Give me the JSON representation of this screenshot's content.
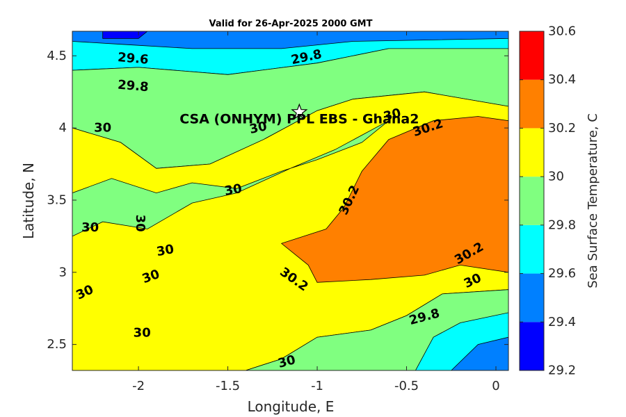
{
  "chart_data": {
    "type": "heatmap",
    "title": "Valid for 26-Apr-2025 2000 GMT",
    "xlabel": "Longitude, E",
    "ylabel": "Latitude, N",
    "xlim": [
      -2.37,
      0.07
    ],
    "ylim": [
      2.32,
      4.67
    ],
    "x_ticks": [
      -2,
      -1.5,
      -1,
      -0.5,
      0
    ],
    "x_tick_labels": [
      "-2",
      "-1.5",
      "-1",
      "-0.5",
      "0"
    ],
    "y_ticks": [
      2.5,
      3,
      3.5,
      4,
      4.5
    ],
    "y_tick_labels": [
      "2.5",
      "3",
      "3.5",
      "4",
      "4.5"
    ],
    "colorbar": {
      "label": "Sea Surface Temperature, C",
      "range": [
        29.2,
        30.6
      ],
      "ticks": [
        "29.2",
        "29.4",
        "29.6",
        "29.8",
        "30",
        "30.2",
        "30.4",
        "30.6"
      ],
      "bands": [
        {
          "from": 29.2,
          "to": 29.4,
          "color": "#0000ff"
        },
        {
          "from": 29.4,
          "to": 29.6,
          "color": "#0080ff"
        },
        {
          "from": 29.6,
          "to": 29.8,
          "color": "#00ffff"
        },
        {
          "from": 29.8,
          "to": 30.0,
          "color": "#80ff80"
        },
        {
          "from": 30.0,
          "to": 30.2,
          "color": "#ffff00"
        },
        {
          "from": 30.2,
          "to": 30.4,
          "color": "#ff8000"
        },
        {
          "from": 30.4,
          "to": 30.6,
          "color": "#ff0000"
        }
      ]
    },
    "regions": [
      {
        "level": "29.6-29.8",
        "color": "#00ffff",
        "points": [
          [
            -2.37,
            4.67
          ],
          [
            0.07,
            4.67
          ],
          [
            0.07,
            4.55
          ],
          [
            -0.6,
            4.55
          ],
          [
            -1.0,
            4.45
          ],
          [
            -1.5,
            4.37
          ],
          [
            -2.0,
            4.42
          ],
          [
            -2.37,
            4.4
          ]
        ]
      },
      {
        "level": "29.4-29.6",
        "color": "#0080ff",
        "points": [
          [
            -2.37,
            4.67
          ],
          [
            0.07,
            4.67
          ],
          [
            0.07,
            4.62
          ],
          [
            -0.8,
            4.6
          ],
          [
            -1.2,
            4.55
          ],
          [
            -1.7,
            4.55
          ],
          [
            -2.1,
            4.58
          ],
          [
            -2.37,
            4.6
          ]
        ]
      },
      {
        "level": "29.2-29.4",
        "color": "#0000ff",
        "points": [
          [
            -2.2,
            4.67
          ],
          [
            -1.95,
            4.67
          ],
          [
            -2.0,
            4.62
          ],
          [
            -2.2,
            4.62
          ]
        ]
      },
      {
        "level": "29.8-30.0",
        "color": "#80ff80",
        "points": [
          [
            -2.37,
            4.4
          ],
          [
            -2.0,
            4.42
          ],
          [
            -1.5,
            4.37
          ],
          [
            -1.0,
            4.45
          ],
          [
            -0.6,
            4.55
          ],
          [
            0.07,
            4.55
          ],
          [
            0.07,
            4.15
          ],
          [
            -0.4,
            4.25
          ],
          [
            -0.8,
            4.2
          ],
          [
            -1.0,
            4.12
          ],
          [
            -1.3,
            3.92
          ],
          [
            -1.6,
            3.75
          ],
          [
            -1.9,
            3.72
          ],
          [
            -2.1,
            3.9
          ],
          [
            -2.37,
            4.0
          ]
        ]
      },
      {
        "level": "30.0-30.2",
        "color": "#ffff00",
        "points": [
          [
            -2.37,
            4.0
          ],
          [
            -2.1,
            3.9
          ],
          [
            -1.9,
            3.72
          ],
          [
            -1.6,
            3.75
          ],
          [
            -1.3,
            3.92
          ],
          [
            -1.0,
            4.12
          ],
          [
            -0.8,
            4.2
          ],
          [
            -0.4,
            4.25
          ],
          [
            0.07,
            4.15
          ],
          [
            0.07,
            2.88
          ],
          [
            -0.3,
            2.85
          ],
          [
            -0.5,
            2.7
          ],
          [
            -0.7,
            2.6
          ],
          [
            -1.0,
            2.55
          ],
          [
            -1.2,
            2.4
          ],
          [
            -1.4,
            2.32
          ],
          [
            -2.37,
            2.32
          ]
        ]
      },
      {
        "level": "29.8-30.0",
        "color": "#80ff80",
        "points": [
          [
            -2.37,
            3.55
          ],
          [
            -2.15,
            3.65
          ],
          [
            -1.9,
            3.55
          ],
          [
            -1.7,
            3.62
          ],
          [
            -1.45,
            3.58
          ],
          [
            -1.2,
            3.7
          ],
          [
            -1.0,
            3.78
          ],
          [
            -0.75,
            3.9
          ],
          [
            -0.6,
            4.05
          ],
          [
            -0.9,
            3.85
          ],
          [
            -1.15,
            3.72
          ],
          [
            -1.45,
            3.55
          ],
          [
            -1.7,
            3.48
          ],
          [
            -1.95,
            3.3
          ],
          [
            -2.2,
            3.35
          ],
          [
            -2.37,
            3.25
          ]
        ]
      },
      {
        "level": "29.8-30.0",
        "color": "#80ff80",
        "points": [
          [
            -1.4,
            2.32
          ],
          [
            -1.2,
            2.4
          ],
          [
            -1.0,
            2.55
          ],
          [
            -0.7,
            2.6
          ],
          [
            -0.5,
            2.7
          ],
          [
            -0.3,
            2.85
          ],
          [
            0.07,
            2.88
          ],
          [
            0.07,
            2.32
          ]
        ]
      },
      {
        "level": "29.6-29.8",
        "color": "#00ffff",
        "points": [
          [
            -0.45,
            2.32
          ],
          [
            -0.35,
            2.55
          ],
          [
            -0.2,
            2.65
          ],
          [
            0.07,
            2.72
          ],
          [
            0.07,
            2.32
          ]
        ]
      },
      {
        "level": "29.4-29.6",
        "color": "#0080ff",
        "points": [
          [
            -0.25,
            2.32
          ],
          [
            -0.1,
            2.5
          ],
          [
            0.07,
            2.55
          ],
          [
            0.07,
            2.32
          ]
        ]
      },
      {
        "level": "30.2-30.4",
        "color": "#ff8000",
        "points": [
          [
            -0.6,
            3.92
          ],
          [
            -0.35,
            4.05
          ],
          [
            -0.1,
            4.08
          ],
          [
            0.07,
            4.05
          ],
          [
            0.07,
            3.0
          ],
          [
            -0.2,
            3.05
          ],
          [
            -0.4,
            2.98
          ],
          [
            -0.7,
            2.95
          ],
          [
            -1.0,
            2.93
          ],
          [
            -1.05,
            3.05
          ],
          [
            -1.2,
            3.2
          ],
          [
            -0.95,
            3.3
          ],
          [
            -0.85,
            3.45
          ],
          [
            -0.75,
            3.7
          ]
        ]
      }
    ],
    "contour_labels": [
      {
        "text": "29.6",
        "x": -2.03,
        "y": 4.48,
        "angle": 5
      },
      {
        "text": "29.8",
        "x": -1.06,
        "y": 4.49,
        "angle": -12
      },
      {
        "text": "29.8",
        "x": -2.03,
        "y": 4.29,
        "angle": 5
      },
      {
        "text": "30",
        "x": -2.2,
        "y": 4.0,
        "angle": 0
      },
      {
        "text": "30",
        "x": -1.33,
        "y": 4.0,
        "angle": -12
      },
      {
        "text": "30",
        "x": -0.58,
        "y": 4.09,
        "angle": -15
      },
      {
        "text": "30.2",
        "x": -0.38,
        "y": 4.0,
        "angle": -18
      },
      {
        "text": "30",
        "x": -1.47,
        "y": 3.57,
        "angle": -10
      },
      {
        "text": "30.2",
        "x": -0.82,
        "y": 3.5,
        "angle": -65
      },
      {
        "text": "30",
        "x": -2.27,
        "y": 3.31,
        "angle": 0
      },
      {
        "text": "30",
        "x": -1.99,
        "y": 3.34,
        "angle": 90
      },
      {
        "text": "30",
        "x": -1.85,
        "y": 3.15,
        "angle": -10
      },
      {
        "text": "30",
        "x": -1.93,
        "y": 2.97,
        "angle": -20
      },
      {
        "text": "30.2",
        "x": -1.13,
        "y": 2.95,
        "angle": 35
      },
      {
        "text": "30.2",
        "x": -0.15,
        "y": 3.13,
        "angle": -30
      },
      {
        "text": "30",
        "x": -0.13,
        "y": 2.94,
        "angle": -25
      },
      {
        "text": "30",
        "x": -2.3,
        "y": 2.86,
        "angle": -25
      },
      {
        "text": "30",
        "x": -1.98,
        "y": 2.58,
        "angle": 0
      },
      {
        "text": "30",
        "x": -1.17,
        "y": 2.38,
        "angle": -15
      },
      {
        "text": "29.8",
        "x": -0.4,
        "y": 2.69,
        "angle": -15
      }
    ],
    "marker": {
      "label": "CSA (ONHYM) PPL EBS  - Ghana2",
      "x": -1.1,
      "y": 4.11,
      "symbol": "star"
    }
  }
}
